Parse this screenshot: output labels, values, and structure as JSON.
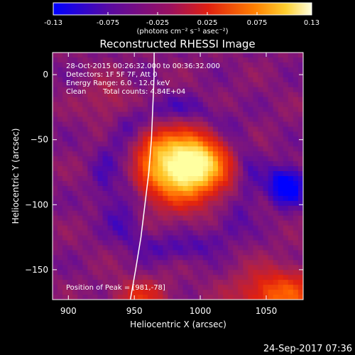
{
  "colorbar": {
    "tick_labels": [
      "-0.13",
      "-0.075",
      "-0.025",
      "0.025",
      "0.075",
      "0.13"
    ],
    "tick_values": [
      -0.13,
      -0.075,
      -0.025,
      0.025,
      0.075,
      0.13
    ],
    "range": [
      -0.13,
      0.13
    ],
    "unit_label": "(photons cm⁻² s⁻¹ asec⁻²)"
  },
  "chart_data": {
    "type": "heatmap",
    "title": "Reconstructed RHESSI Image",
    "xlabel": "Heliocentric X (arcsec)",
    "ylabel": "Heliocentric Y (arcsec)",
    "xlim": [
      888,
      1078
    ],
    "ylim": [
      -173,
      17
    ],
    "x_ticks": [
      900,
      950,
      1000,
      1050
    ],
    "y_ticks": [
      0,
      -50,
      -100,
      -150
    ],
    "x_tick_labels": [
      "900",
      "950",
      "1000",
      "1050"
    ],
    "y_tick_labels": [
      "0",
      "−50",
      "−100",
      "−150"
    ],
    "color_scale": [
      "#0000ff",
      "#5a0aa0",
      "#a0205a",
      "#e02010",
      "#ff6000",
      "#ffc020",
      "#ffffa0"
    ],
    "peak": [
      981,
      -78
    ],
    "sources": [
      {
        "x": 985,
        "y": -72,
        "sx": 22,
        "sy": 18,
        "amp": 0.19
      },
      {
        "x": 1000,
        "y": -66,
        "sx": 14,
        "sy": 14,
        "amp": 0.06
      },
      {
        "x": 966,
        "y": -53,
        "sx": 9,
        "sy": 8,
        "amp": 0.04
      },
      {
        "x": 1060,
        "y": -170,
        "sx": 22,
        "sy": 14,
        "amp": 0.1
      },
      {
        "x": 955,
        "y": -172,
        "sx": 15,
        "sy": 10,
        "amp": 0.06
      },
      {
        "x": 930,
        "y": -20,
        "sx": 12,
        "sy": 12,
        "amp": 0.03
      }
    ],
    "negative_regions": [
      {
        "x": 1065,
        "y": -85,
        "sx": 10,
        "sy": 10,
        "amp": -0.09
      },
      {
        "x": 945,
        "y": -80,
        "sx": 7,
        "sy": 22,
        "amp": -0.03
      }
    ],
    "limb_curve": [
      {
        "x": 947,
        "y": -173
      },
      {
        "x": 951,
        "y": -150
      },
      {
        "x": 955,
        "y": -125
      },
      {
        "x": 958,
        "y": -100
      },
      {
        "x": 961,
        "y": -75
      },
      {
        "x": 963,
        "y": -50
      },
      {
        "x": 964,
        "y": -25
      },
      {
        "x": 965,
        "y": 0
      },
      {
        "x": 965,
        "y": 17
      }
    ],
    "annotations": {
      "time": "28-Oct-2015 00:26:32.000 to 00:36:32.000",
      "detectors": "Detectors: 1F 5F 7F, Att 0",
      "energy": "Energy Range: 6.0 - 12.0 keV",
      "clean": "Clean",
      "counts": "Total counts: 4.84E+04",
      "peak": "Position of Peak = [981,-78]"
    }
  },
  "footer": {
    "timestamp": "24-Sep-2017 07:36"
  }
}
